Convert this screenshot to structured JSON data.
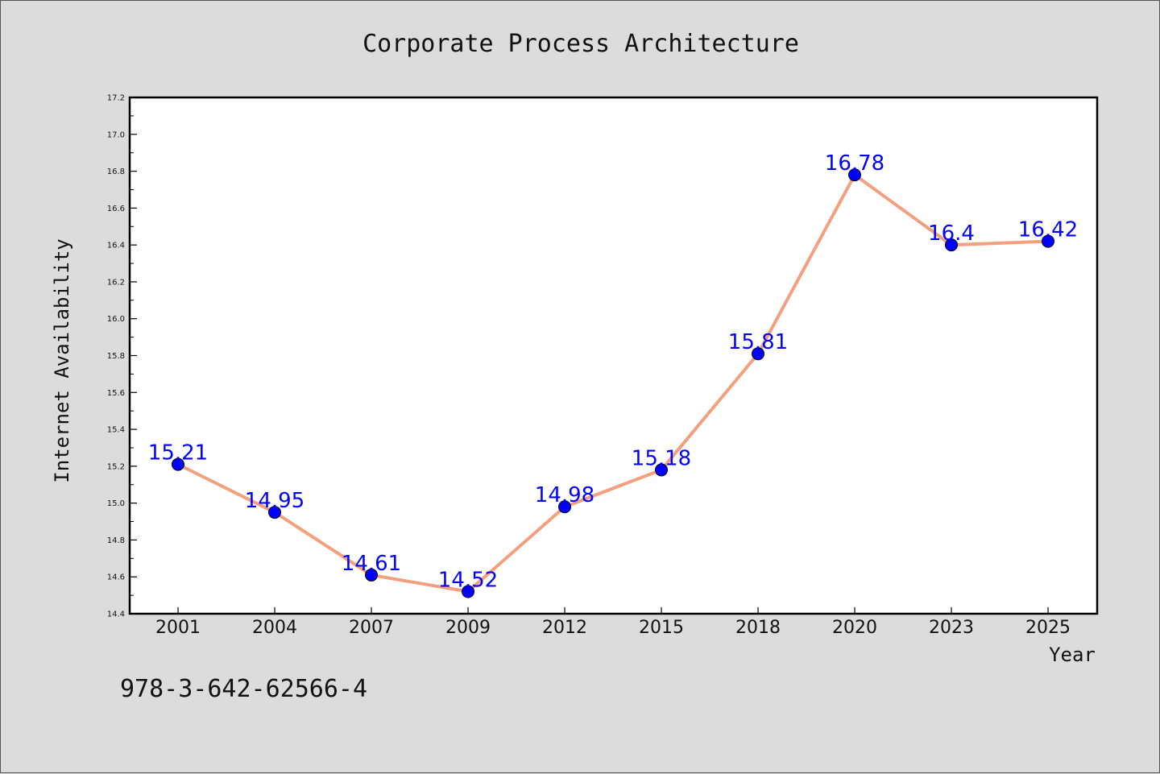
{
  "chart_data": {
    "type": "line",
    "title": "Corporate Process Architecture",
    "xlabel": "Year",
    "ylabel": "Internet Availability",
    "categories": [
      "2001",
      "2004",
      "2007",
      "2009",
      "2012",
      "2015",
      "2018",
      "2020",
      "2023",
      "2025"
    ],
    "series": [
      {
        "values": [
          15.21,
          14.95,
          14.61,
          14.52,
          14.98,
          15.18,
          15.81,
          16.78,
          16.4,
          16.42
        ],
        "data_labels": [
          "15.21",
          "14.95",
          "14.61",
          "14.52",
          "14.98",
          "15.18",
          "15.81",
          "16.78",
          "16.4",
          "16.42"
        ],
        "line_color": "#f4a07e",
        "marker_color": "#0000ff"
      }
    ],
    "ylim": [
      14.4,
      17.2
    ],
    "yticks": [
      "14.4",
      "14.6",
      "14.8",
      "15.0",
      "15.2",
      "15.4",
      "15.6",
      "15.8",
      "16.0",
      "16.2",
      "16.4",
      "16.6",
      "16.8",
      "17.0",
      "17.2"
    ],
    "grid": false,
    "legend": "none"
  },
  "footer": {
    "code": "978-3-642-62566-4"
  }
}
